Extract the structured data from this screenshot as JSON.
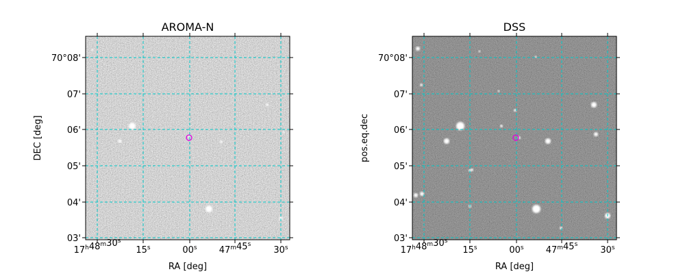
{
  "panels": [
    {
      "title": "AROMA-N",
      "xlabel": "RA [deg]",
      "ylabel": "DEC [deg]",
      "xticks": [
        "17h48m30s",
        "15s",
        "00s",
        "47m45s",
        "30s"
      ],
      "yticks": [
        "70°08'",
        "07'",
        "06'",
        "05'",
        "04'",
        "03'"
      ]
    },
    {
      "title": "DSS",
      "xlabel": "RA [deg]",
      "ylabel": "pos.eq.dec",
      "xticks": [
        "17h48m30s",
        "15s",
        "00s",
        "47m45s",
        "30s"
      ],
      "yticks": [
        "70°08'",
        "07'",
        "06'",
        "05'",
        "04'",
        "03'"
      ]
    }
  ]
}
